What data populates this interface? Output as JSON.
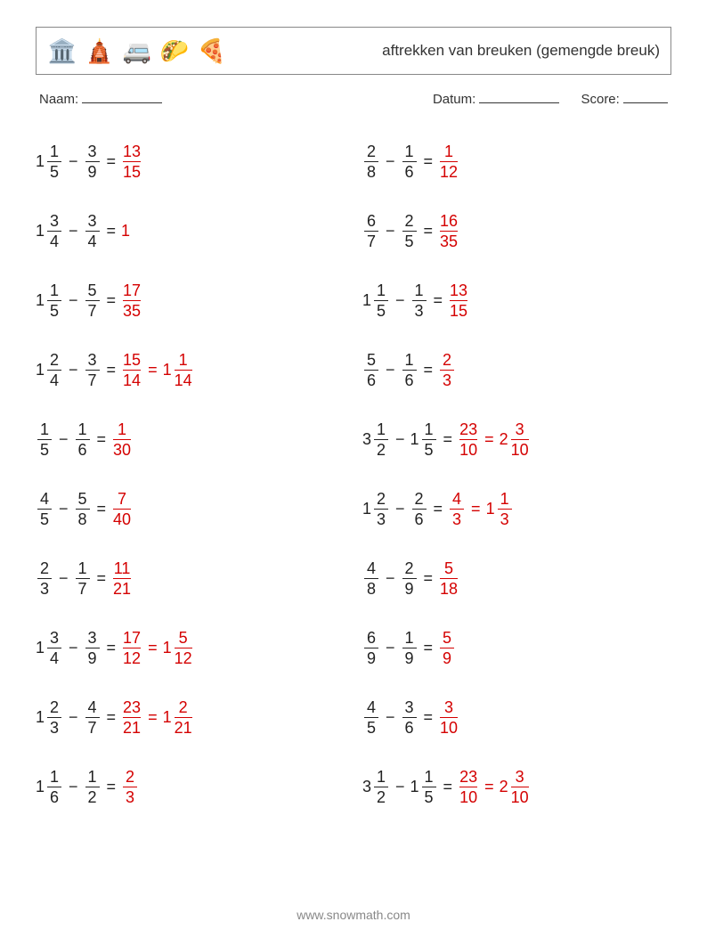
{
  "header": {
    "title": "aftrekken van breuken (gemengde breuk)",
    "icons": [
      "🏛️",
      "🛕",
      "🚐",
      "🌮",
      "🍕"
    ]
  },
  "meta": {
    "name_label": "Naam:",
    "date_label": "Datum:",
    "score_label": "Score:"
  },
  "footer": "www.snowmath.com",
  "columns": [
    [
      {
        "a": {
          "w": 1,
          "n": 1,
          "d": 5
        },
        "b": {
          "n": 3,
          "d": 9
        },
        "r": [
          {
            "n": 13,
            "d": 15
          }
        ]
      },
      {
        "a": {
          "w": 1,
          "n": 3,
          "d": 4
        },
        "b": {
          "n": 3,
          "d": 4
        },
        "r": [
          {
            "w": 1
          }
        ]
      },
      {
        "a": {
          "w": 1,
          "n": 1,
          "d": 5
        },
        "b": {
          "n": 5,
          "d": 7
        },
        "r": [
          {
            "n": 17,
            "d": 35
          }
        ]
      },
      {
        "a": {
          "w": 1,
          "n": 2,
          "d": 4
        },
        "b": {
          "n": 3,
          "d": 7
        },
        "r": [
          {
            "n": 15,
            "d": 14
          },
          {
            "w": 1,
            "n": 1,
            "d": 14
          }
        ]
      },
      {
        "a": {
          "n": 1,
          "d": 5
        },
        "b": {
          "n": 1,
          "d": 6
        },
        "r": [
          {
            "n": 1,
            "d": 30
          }
        ]
      },
      {
        "a": {
          "n": 4,
          "d": 5
        },
        "b": {
          "n": 5,
          "d": 8
        },
        "r": [
          {
            "n": 7,
            "d": 40
          }
        ]
      },
      {
        "a": {
          "n": 2,
          "d": 3
        },
        "b": {
          "n": 1,
          "d": 7
        },
        "r": [
          {
            "n": 11,
            "d": 21
          }
        ]
      },
      {
        "a": {
          "w": 1,
          "n": 3,
          "d": 4
        },
        "b": {
          "n": 3,
          "d": 9
        },
        "r": [
          {
            "n": 17,
            "d": 12
          },
          {
            "w": 1,
            "n": 5,
            "d": 12
          }
        ]
      },
      {
        "a": {
          "w": 1,
          "n": 2,
          "d": 3
        },
        "b": {
          "n": 4,
          "d": 7
        },
        "r": [
          {
            "n": 23,
            "d": 21
          },
          {
            "w": 1,
            "n": 2,
            "d": 21
          }
        ]
      },
      {
        "a": {
          "w": 1,
          "n": 1,
          "d": 6
        },
        "b": {
          "n": 1,
          "d": 2
        },
        "r": [
          {
            "n": 2,
            "d": 3
          }
        ]
      }
    ],
    [
      {
        "a": {
          "n": 2,
          "d": 8
        },
        "b": {
          "n": 1,
          "d": 6
        },
        "r": [
          {
            "n": 1,
            "d": 12
          }
        ]
      },
      {
        "a": {
          "n": 6,
          "d": 7
        },
        "b": {
          "n": 2,
          "d": 5
        },
        "r": [
          {
            "n": 16,
            "d": 35
          }
        ]
      },
      {
        "a": {
          "w": 1,
          "n": 1,
          "d": 5
        },
        "b": {
          "n": 1,
          "d": 3
        },
        "r": [
          {
            "n": 13,
            "d": 15
          }
        ]
      },
      {
        "a": {
          "n": 5,
          "d": 6
        },
        "b": {
          "n": 1,
          "d": 6
        },
        "r": [
          {
            "n": 2,
            "d": 3
          }
        ]
      },
      {
        "a": {
          "w": 3,
          "n": 1,
          "d": 2
        },
        "b": {
          "w": 1,
          "n": 1,
          "d": 5
        },
        "r": [
          {
            "n": 23,
            "d": 10
          },
          {
            "w": 2,
            "n": 3,
            "d": 10
          }
        ]
      },
      {
        "a": {
          "w": 1,
          "n": 2,
          "d": 3
        },
        "b": {
          "n": 2,
          "d": 6
        },
        "r": [
          {
            "n": 4,
            "d": 3
          },
          {
            "w": 1,
            "n": 1,
            "d": 3
          }
        ]
      },
      {
        "a": {
          "n": 4,
          "d": 8
        },
        "b": {
          "n": 2,
          "d": 9
        },
        "r": [
          {
            "n": 5,
            "d": 18
          }
        ]
      },
      {
        "a": {
          "n": 6,
          "d": 9
        },
        "b": {
          "n": 1,
          "d": 9
        },
        "r": [
          {
            "n": 5,
            "d": 9
          }
        ]
      },
      {
        "a": {
          "n": 4,
          "d": 5
        },
        "b": {
          "n": 3,
          "d": 6
        },
        "r": [
          {
            "n": 3,
            "d": 10
          }
        ]
      },
      {
        "a": {
          "w": 3,
          "n": 1,
          "d": 2
        },
        "b": {
          "w": 1,
          "n": 1,
          "d": 5
        },
        "r": [
          {
            "n": 23,
            "d": 10
          },
          {
            "w": 2,
            "n": 3,
            "d": 10
          }
        ]
      }
    ]
  ]
}
